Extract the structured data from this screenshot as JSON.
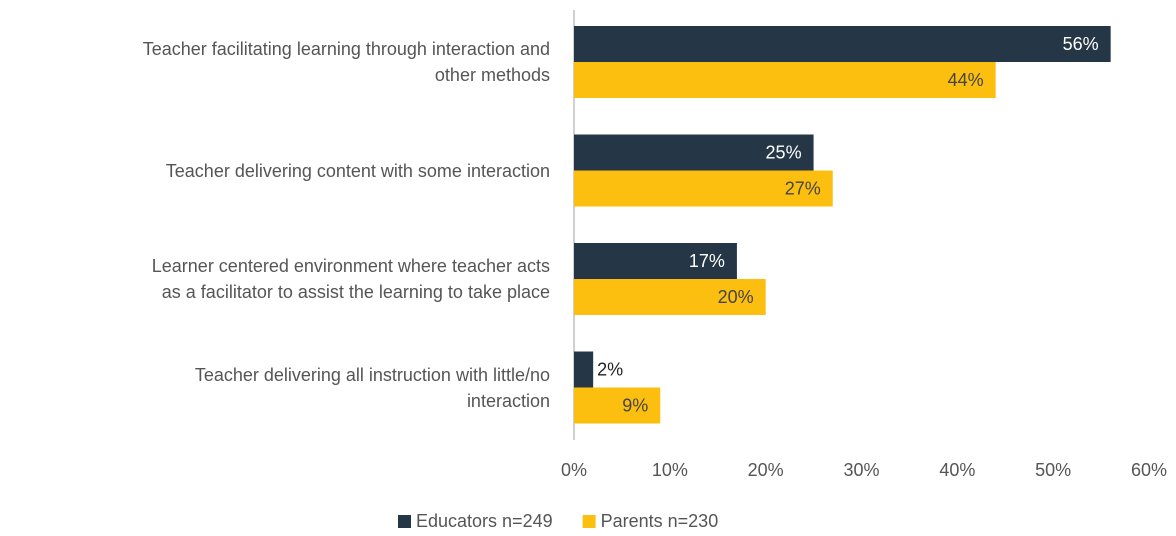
{
  "chart_data": {
    "type": "hbar",
    "categories": [
      "Teacher facilitating learning through interaction and\nother methods",
      "Teacher delivering content with some interaction",
      "Learner centered environment where teacher acts\nas a facilitator to assist the learning to take place",
      "Teacher delivering all instruction with little/no\ninteraction"
    ],
    "series": [
      {
        "name": "Educators n=249",
        "color": "#253746",
        "values": [
          56,
          25,
          17,
          2
        ],
        "value_labels": [
          "56%",
          "25%",
          "17%",
          "2%"
        ]
      },
      {
        "name": "Parents n=230",
        "color": "#FDBF0F",
        "values": [
          44,
          27,
          20,
          9
        ],
        "value_labels": [
          "44%",
          "27%",
          "20%",
          "9%"
        ]
      }
    ],
    "xlim": [
      0,
      60
    ],
    "xticks": [
      {
        "value": 0,
        "label": "0%"
      },
      {
        "value": 10,
        "label": "10%"
      },
      {
        "value": 20,
        "label": "20%"
      },
      {
        "value": 30,
        "label": "30%"
      },
      {
        "value": 40,
        "label": "40%"
      },
      {
        "value": 50,
        "label": "50%"
      },
      {
        "value": 60,
        "label": "60%"
      }
    ],
    "legend": "bottom"
  }
}
